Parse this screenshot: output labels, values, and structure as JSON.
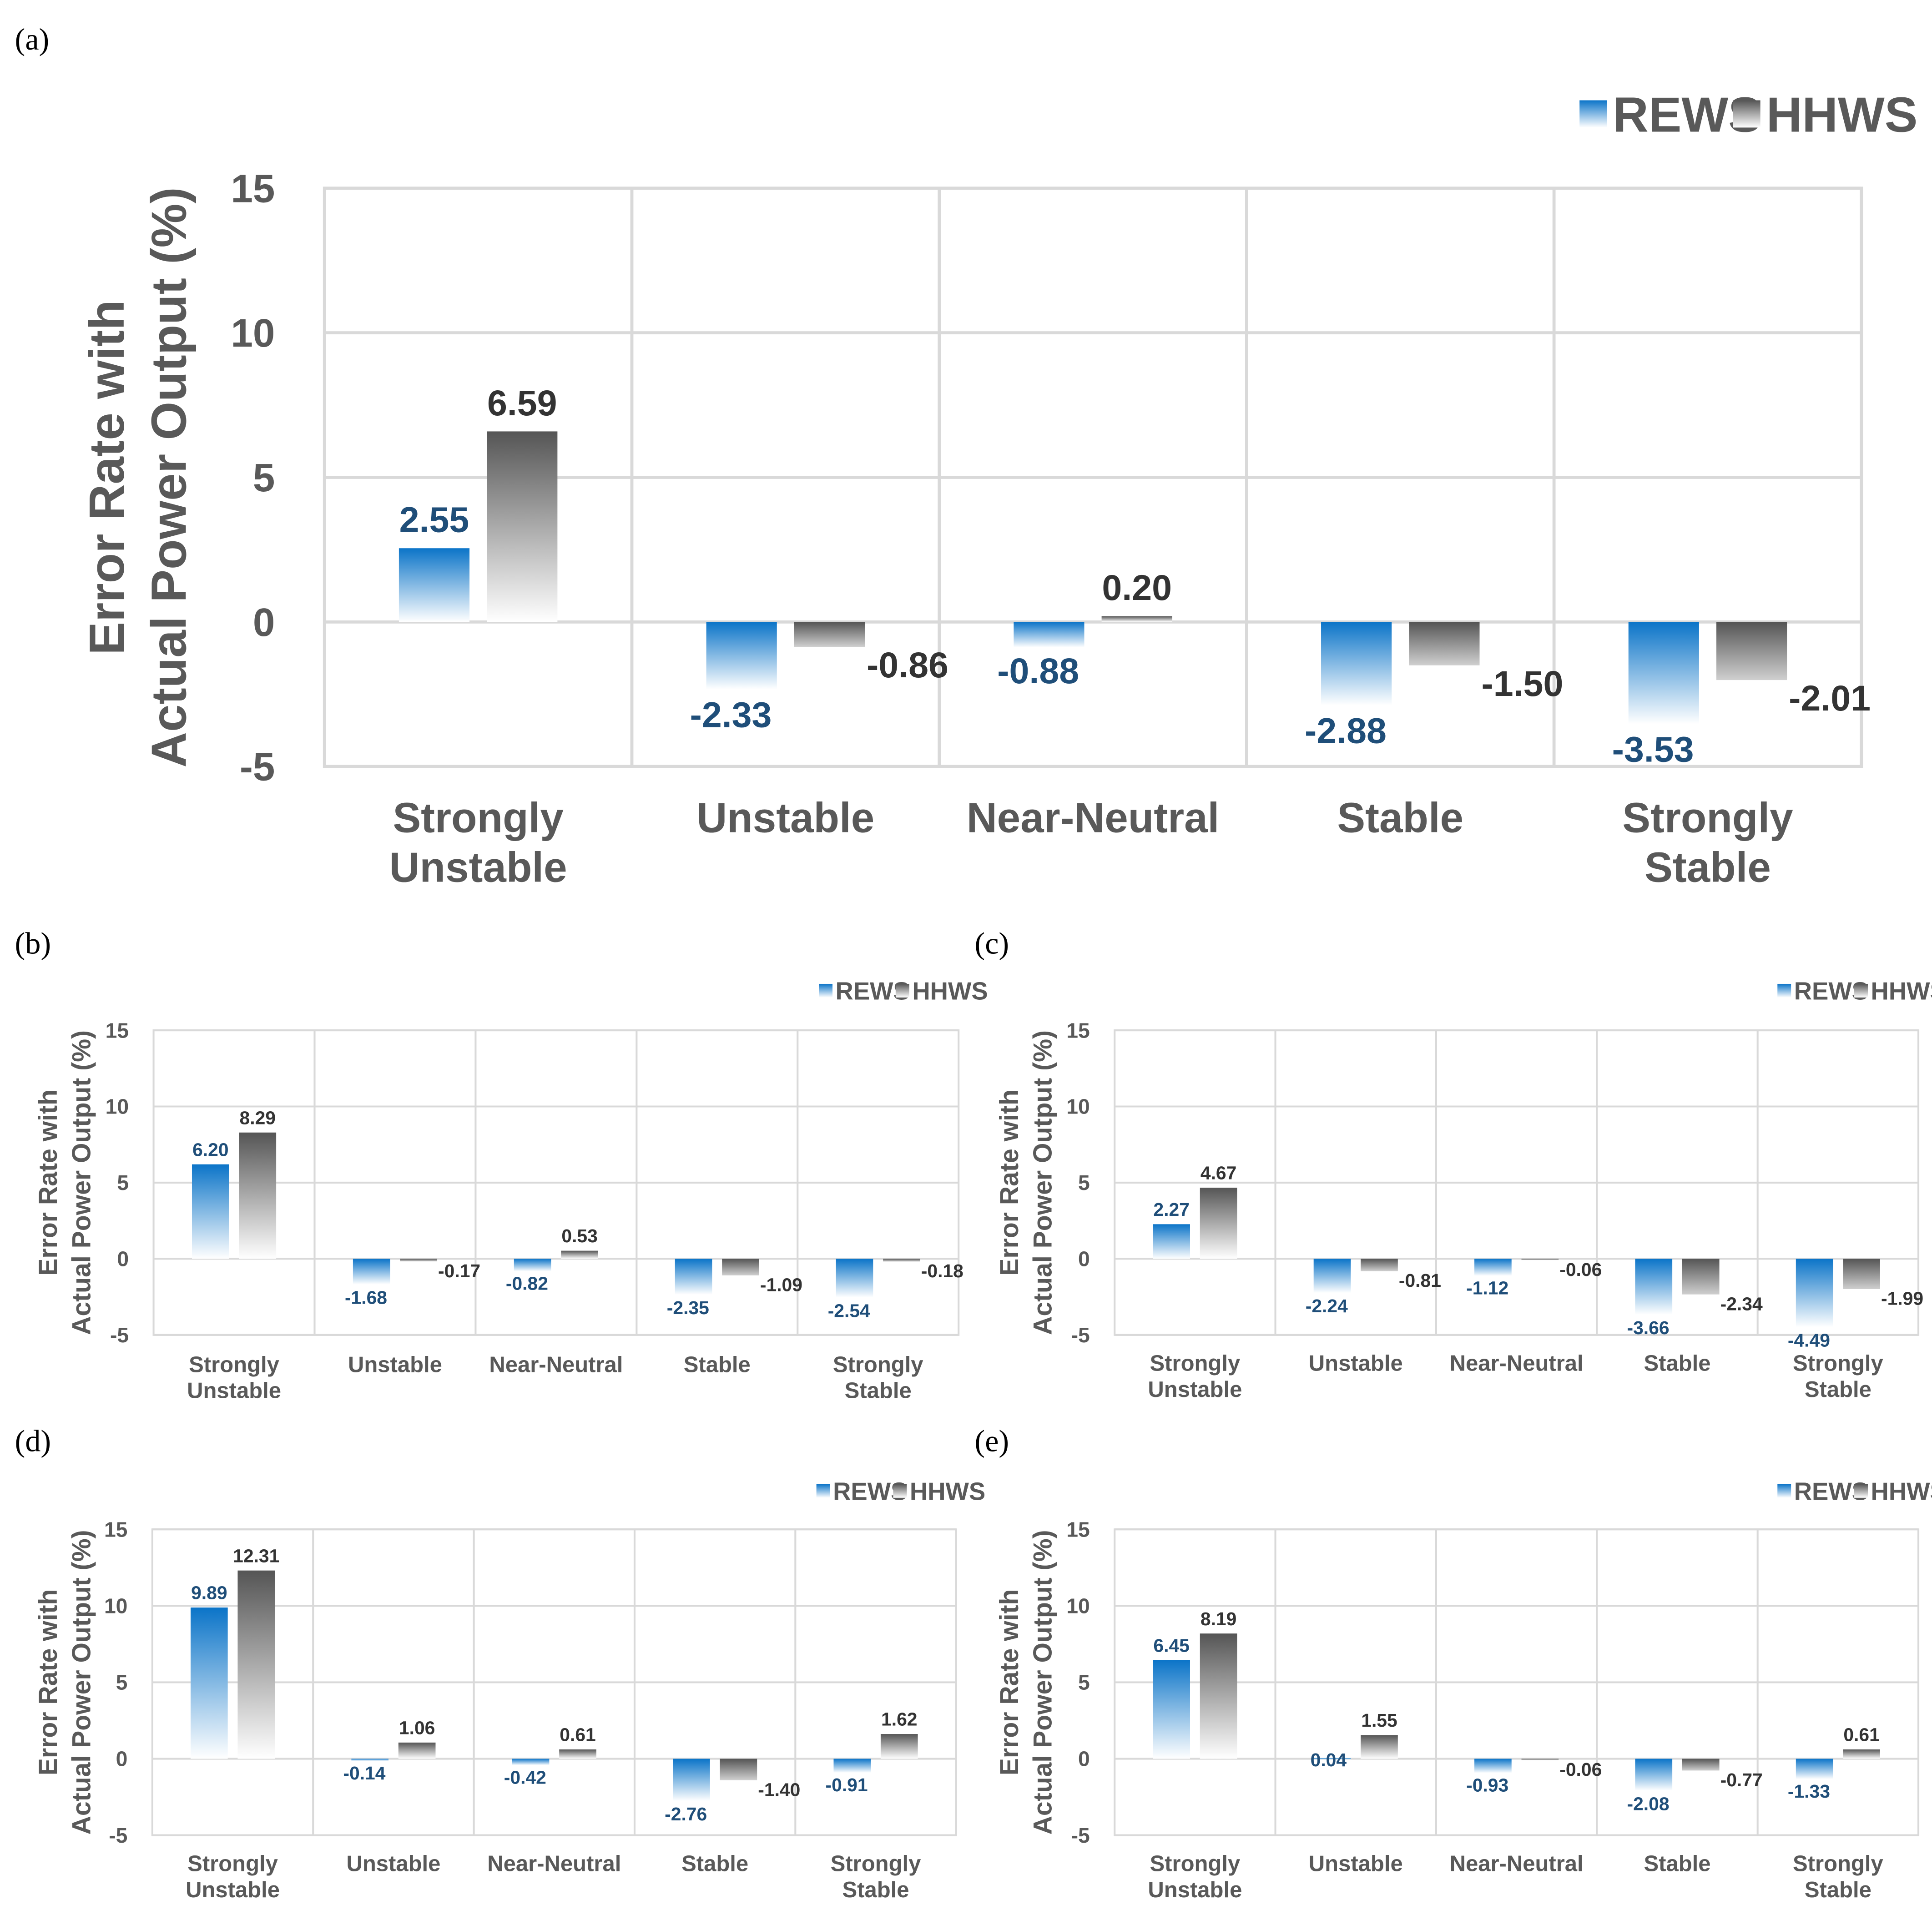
{
  "figure": {
    "colors": {
      "rews_top": "#0b74c8",
      "rews_bottom": "#ffffff",
      "hhws_top": "#555555",
      "hhws_bottom": "#ffffff",
      "rews_label": "#1f4e79",
      "hhws_label": "#333333",
      "axis_text": "#595959",
      "grid": "#d9d9d9"
    }
  },
  "chart_data": [
    {
      "panel": "(a)",
      "type": "bar",
      "title": "",
      "xlabel": "",
      "ylabel": "Error Rate with Actual Power Output (%)",
      "ylabel_lines": [
        "Error Rate with",
        "Actual Power Output (%)"
      ],
      "ylim": [
        -5,
        15
      ],
      "yticks": [
        -5,
        0,
        5,
        10,
        15
      ],
      "yticks_labels": [
        "-5",
        "0",
        "5",
        "10",
        "15"
      ],
      "grid": true,
      "legend_position": "top-right",
      "categories": [
        [
          "Strongly",
          "Unstable"
        ],
        [
          "Unstable"
        ],
        [
          "Near-Neutral"
        ],
        [
          "Stable"
        ],
        [
          "Strongly",
          "Stable"
        ]
      ],
      "series": [
        {
          "name": "REWS",
          "values": [
            2.55,
            -2.33,
            -0.88,
            -2.88,
            -3.53
          ],
          "labels": [
            "2.55",
            "-2.33",
            "-0.88",
            "-2.88",
            "-3.53"
          ]
        },
        {
          "name": "HHWS",
          "values": [
            6.59,
            -0.86,
            0.2,
            -1.5,
            -2.01
          ],
          "labels": [
            "6.59",
            "-0.86",
            "0.20",
            "-1.50",
            "-2.01"
          ]
        }
      ]
    },
    {
      "panel": "(b)",
      "type": "bar",
      "title": "",
      "xlabel": "",
      "ylabel": "Error Rate with Actual Power Output (%)",
      "ylabel_lines": [
        "Error Rate with",
        "Actual Power Output (%)"
      ],
      "ylim": [
        -5,
        15
      ],
      "yticks": [
        -5,
        0,
        5,
        10,
        15
      ],
      "yticks_labels": [
        "-5",
        "0",
        "5",
        "10",
        "15"
      ],
      "grid": true,
      "legend_position": "top-right",
      "categories": [
        [
          "Strongly",
          "Unstable"
        ],
        [
          "Unstable"
        ],
        [
          "Near-Neutral"
        ],
        [
          "Stable"
        ],
        [
          "Strongly",
          "Stable"
        ]
      ],
      "series": [
        {
          "name": "REWS",
          "values": [
            6.2,
            -1.68,
            -0.82,
            -2.35,
            -2.54
          ],
          "labels": [
            "6.20",
            "-1.68",
            "-0.82",
            "-2.35",
            "-2.54"
          ]
        },
        {
          "name": "HHWS",
          "values": [
            8.29,
            -0.17,
            0.53,
            -1.09,
            -0.18
          ],
          "labels": [
            "8.29",
            "-0.17",
            "0.53",
            "-1.09",
            "-0.18"
          ]
        }
      ]
    },
    {
      "panel": "(c)",
      "type": "bar",
      "title": "",
      "xlabel": "",
      "ylabel": "Error Rate with Actual Power Output (%)",
      "ylabel_lines": [
        "Error Rate with",
        "Actual Power Output (%)"
      ],
      "ylim": [
        -5,
        15
      ],
      "yticks": [
        -5,
        0,
        5,
        10,
        15
      ],
      "yticks_labels": [
        "-5",
        "0",
        "5",
        "10",
        "15"
      ],
      "grid": true,
      "legend_position": "top-right",
      "categories": [
        [
          "Strongly",
          "Unstable"
        ],
        [
          "Unstable"
        ],
        [
          "Near-Neutral"
        ],
        [
          "Stable"
        ],
        [
          "Strongly",
          "Stable"
        ]
      ],
      "series": [
        {
          "name": "REWS",
          "values": [
            2.27,
            -2.24,
            -1.12,
            -3.66,
            -4.49
          ],
          "labels": [
            "2.27",
            "-2.24",
            "-1.12",
            "-3.66",
            "-4.49"
          ]
        },
        {
          "name": "HHWS",
          "values": [
            4.67,
            -0.81,
            -0.06,
            -2.34,
            -1.99
          ],
          "labels": [
            "4.67",
            "-0.81",
            "-0.06",
            "-2.34",
            "-1.99"
          ]
        }
      ]
    },
    {
      "panel": "(d)",
      "type": "bar",
      "title": "",
      "xlabel": "",
      "ylabel": "Error Rate with Actual Power Output (%)",
      "ylabel_lines": [
        "Error Rate with",
        "Actual Power Output (%)"
      ],
      "ylim": [
        -5,
        15
      ],
      "yticks": [
        -5,
        0,
        5,
        10,
        15
      ],
      "yticks_labels": [
        "-5",
        "0",
        "5",
        "10",
        "15"
      ],
      "grid": true,
      "legend_position": "top-right",
      "categories": [
        [
          "Strongly",
          "Unstable"
        ],
        [
          "Unstable"
        ],
        [
          "Near-Neutral"
        ],
        [
          "Stable"
        ],
        [
          "Strongly",
          "Stable"
        ]
      ],
      "series": [
        {
          "name": "REWS",
          "values": [
            9.89,
            -0.14,
            -0.42,
            -2.76,
            -0.91
          ],
          "labels": [
            "9.89",
            "-0.14",
            "-0.42",
            "-2.76",
            "-0.91"
          ]
        },
        {
          "name": "HHWS",
          "values": [
            12.31,
            1.06,
            0.61,
            -1.4,
            1.62
          ],
          "labels": [
            "12.31",
            "1.06",
            "0.61",
            "-1.40",
            "1.62"
          ]
        }
      ]
    },
    {
      "panel": "(e)",
      "type": "bar",
      "title": "",
      "xlabel": "",
      "ylabel": "Error Rate with Actual Power Output (%)",
      "ylabel_lines": [
        "Error Rate with",
        "Actual Power Output (%)"
      ],
      "ylim": [
        -5,
        15
      ],
      "yticks": [
        -5,
        0,
        5,
        10,
        15
      ],
      "yticks_labels": [
        "-5",
        "0",
        "5",
        "10",
        "15"
      ],
      "grid": true,
      "legend_position": "top-right",
      "categories": [
        [
          "Strongly",
          "Unstable"
        ],
        [
          "Unstable"
        ],
        [
          "Near-Neutral"
        ],
        [
          "Stable"
        ],
        [
          "Strongly",
          "Stable"
        ]
      ],
      "series": [
        {
          "name": "REWS",
          "values": [
            6.45,
            0.04,
            -0.93,
            -2.08,
            -1.33
          ],
          "labels": [
            "6.45",
            "0.04",
            "-0.93",
            "-2.08",
            "-1.33"
          ]
        },
        {
          "name": "HHWS",
          "values": [
            8.19,
            1.55,
            -0.06,
            -0.77,
            0.61
          ],
          "labels": [
            "8.19",
            "1.55",
            "-0.06",
            "-0.77",
            "0.61"
          ]
        }
      ]
    }
  ]
}
